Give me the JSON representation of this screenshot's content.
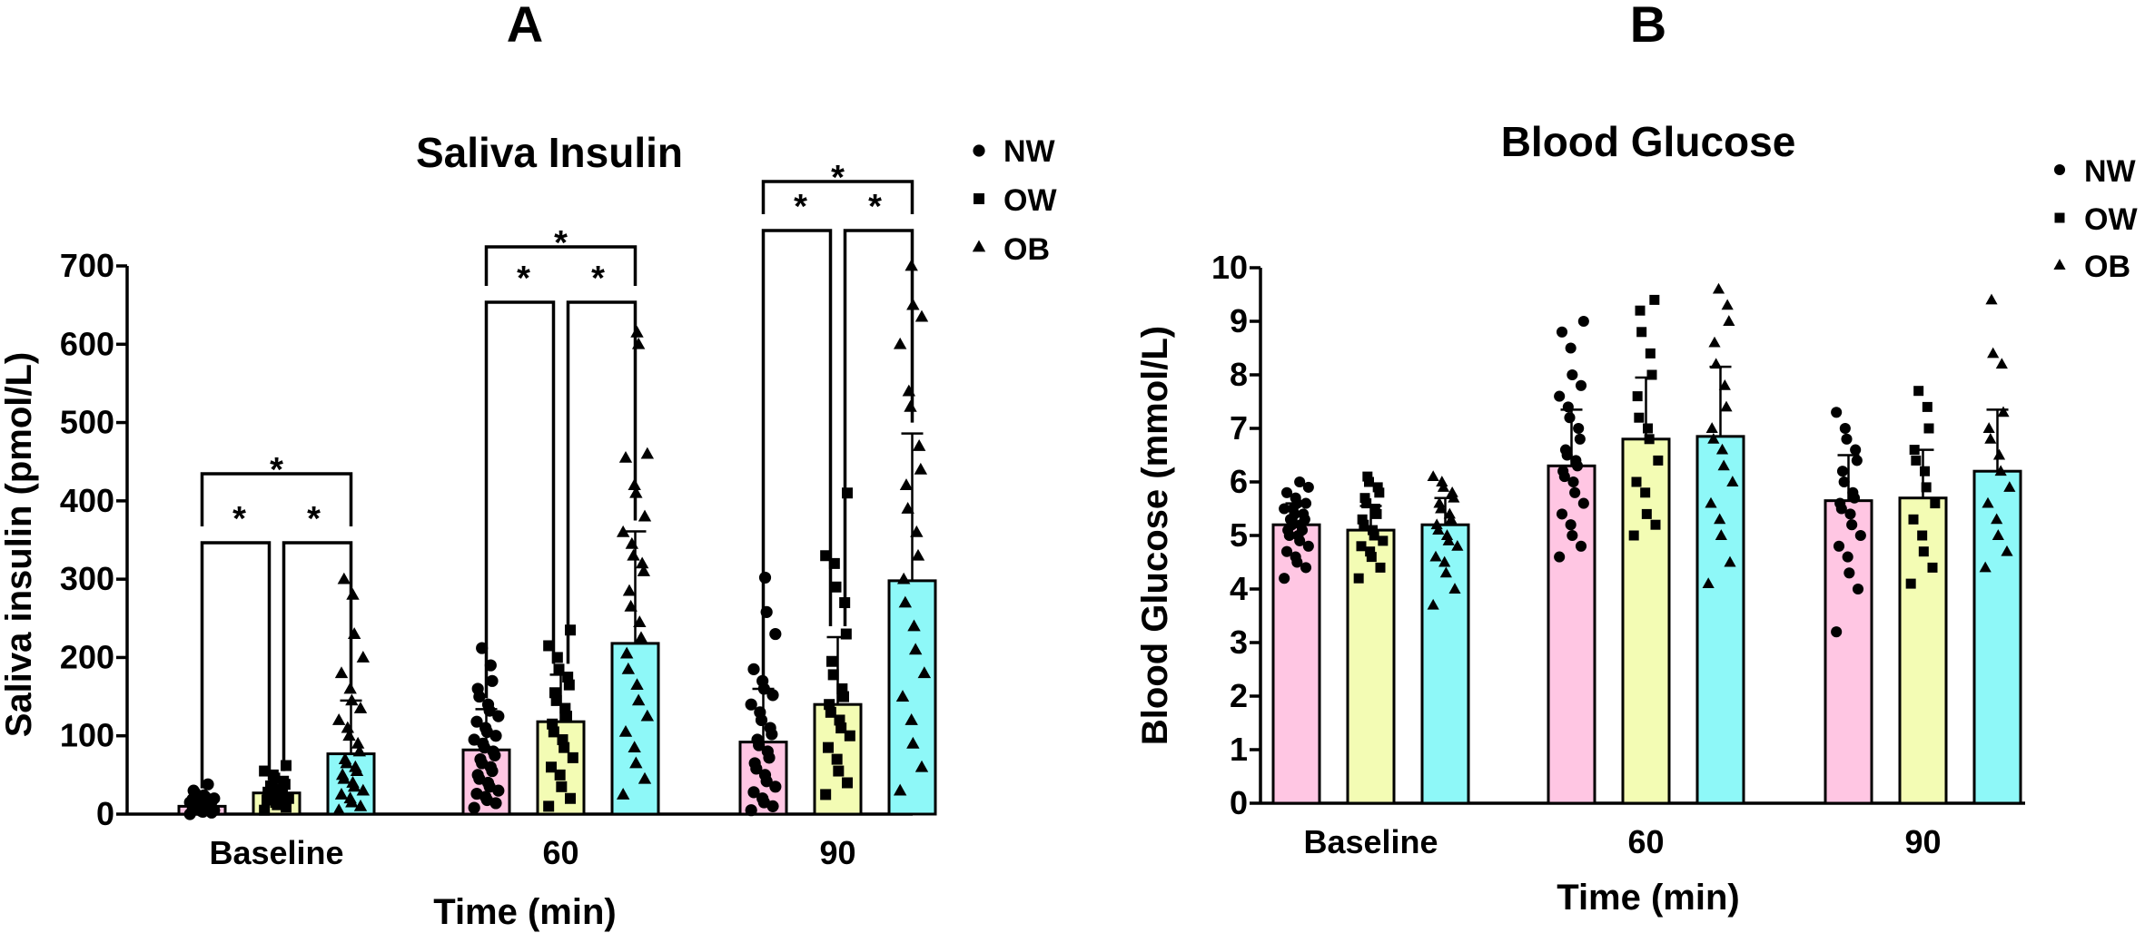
{
  "panels": [
    {
      "letter": "A"
    },
    {
      "letter": "B"
    }
  ],
  "colors": {
    "NW": "#ffc6e3",
    "OW": "#f3fcb4",
    "OB": "#8ef8f8"
  },
  "chart_data": [
    {
      "type": "bar",
      "title": "Saliva Insulin",
      "xlabel": "Time (min)",
      "ylabel": "Saliva insulin (pmol/L)",
      "categories": [
        "Baseline",
        "60",
        "90"
      ],
      "ylim": [
        0,
        700
      ],
      "yticks": [
        0,
        100,
        200,
        300,
        400,
        500,
        600,
        700
      ],
      "legend_position": "top-right",
      "series": [
        {
          "name": "NW",
          "marker": "circle",
          "values": [
            10,
            82,
            92
          ],
          "sd": [
            9,
            52,
            68
          ]
        },
        {
          "name": "OW",
          "marker": "square",
          "values": [
            27,
            118,
            140
          ],
          "sd": [
            14,
            60,
            86
          ]
        },
        {
          "name": "OB",
          "marker": "triangle",
          "values": [
            77,
            218,
            298
          ],
          "sd": [
            68,
            143,
            188
          ]
        }
      ],
      "points": {
        "NW": [
          [
            0,
            2,
            3,
            4,
            5,
            5,
            6,
            7,
            8,
            8,
            9,
            10,
            10,
            11,
            12,
            12,
            13,
            14,
            15,
            16,
            17,
            18,
            19,
            20,
            22,
            24,
            27,
            30,
            38
          ],
          [
            8,
            14,
            18,
            22,
            26,
            30,
            35,
            40,
            45,
            50,
            55,
            60,
            65,
            70,
            75,
            80,
            85,
            90,
            95,
            100,
            105,
            110,
            118,
            125,
            132,
            140,
            150,
            160,
            170,
            190,
            212
          ],
          [
            5,
            10,
            15,
            20,
            28,
            35,
            42,
            50,
            58,
            65,
            72,
            80,
            88,
            95,
            102,
            110,
            120,
            130,
            140,
            152,
            160,
            170,
            185,
            230,
            258,
            302
          ]
        ],
        "OW": [
          [
            5,
            9,
            12,
            15,
            18,
            20,
            22,
            24,
            26,
            28,
            30,
            32,
            34,
            36,
            38,
            42,
            46,
            50,
            55,
            62
          ],
          [
            10,
            20,
            35,
            50,
            60,
            72,
            85,
            95,
            105,
            115,
            125,
            135,
            145,
            155,
            165,
            175,
            185,
            200,
            215,
            235
          ],
          [
            25,
            40,
            55,
            70,
            85,
            100,
            110,
            120,
            130,
            140,
            150,
            160,
            178,
            195,
            230,
            270,
            290,
            320,
            330,
            410
          ]
        ],
        "OB": [
          [
            5,
            10,
            15,
            20,
            25,
            30,
            35,
            40,
            45,
            50,
            55,
            60,
            65,
            70,
            80,
            90,
            100,
            110,
            120,
            135,
            145,
            160,
            180,
            200,
            230,
            280,
            300
          ],
          [
            25,
            45,
            65,
            85,
            105,
            125,
            145,
            165,
            185,
            205,
            225,
            245,
            265,
            285,
            310,
            320,
            330,
            345,
            360,
            380,
            410,
            420,
            455,
            460,
            600,
            615
          ],
          [
            30,
            60,
            90,
            120,
            150,
            180,
            210,
            240,
            270,
            300,
            330,
            360,
            390,
            420,
            440,
            470,
            520,
            540,
            600,
            635,
            650,
            700
          ]
        ]
      },
      "significance": [
        {
          "group": "Baseline",
          "pairs": [
            [
              "NW",
              "OW"
            ],
            [
              "OW",
              "OB"
            ],
            [
              "NW",
              "OB"
            ]
          ],
          "label": "*"
        },
        {
          "group": "60",
          "pairs": [
            [
              "NW",
              "OW"
            ],
            [
              "OW",
              "OB"
            ],
            [
              "NW",
              "OB"
            ]
          ],
          "label": "*"
        },
        {
          "group": "90",
          "pairs": [
            [
              "NW",
              "OW"
            ],
            [
              "OW",
              "OB"
            ],
            [
              "NW",
              "OB"
            ]
          ],
          "label": "*"
        }
      ]
    },
    {
      "type": "bar",
      "title": "Blood Glucose",
      "xlabel": "Time (min)",
      "ylabel": "Blood Glucose (mmol/L)",
      "categories": [
        "Baseline",
        "60",
        "90"
      ],
      "ylim": [
        0,
        10
      ],
      "yticks": [
        0,
        1,
        2,
        3,
        4,
        5,
        6,
        7,
        8,
        9,
        10
      ],
      "legend_position": "top-right",
      "series": [
        {
          "name": "NW",
          "marker": "circle",
          "values": [
            5.2,
            6.3,
            5.65
          ],
          "sd": [
            0.4,
            1.05,
            0.85
          ]
        },
        {
          "name": "OW",
          "marker": "square",
          "values": [
            5.1,
            6.8,
            5.7
          ],
          "sd": [
            0.45,
            1.15,
            0.9
          ]
        },
        {
          "name": "OB",
          "marker": "triangle",
          "values": [
            5.2,
            6.85,
            6.2
          ],
          "sd": [
            0.5,
            1.3,
            1.15
          ]
        }
      ],
      "points": {
        "NW": [
          [
            4.2,
            4.4,
            4.5,
            4.6,
            4.7,
            4.8,
            4.9,
            5.0,
            5.0,
            5.1,
            5.1,
            5.2,
            5.2,
            5.3,
            5.3,
            5.4,
            5.4,
            5.5,
            5.5,
            5.6,
            5.6,
            5.7,
            5.8,
            5.9,
            6.0
          ],
          [
            4.6,
            4.8,
            5.0,
            5.2,
            5.4,
            5.6,
            5.8,
            6.0,
            6.1,
            6.2,
            6.3,
            6.4,
            6.5,
            6.6,
            6.8,
            7.0,
            7.2,
            7.4,
            7.6,
            7.8,
            8.0,
            8.5,
            8.8,
            9.0
          ],
          [
            3.2,
            4.0,
            4.3,
            4.6,
            4.8,
            5.0,
            5.2,
            5.4,
            5.5,
            5.6,
            5.7,
            5.8,
            6.0,
            6.2,
            6.4,
            6.6,
            6.8,
            7.0,
            7.3
          ]
        ],
        "OW": [
          [
            4.2,
            4.4,
            4.6,
            4.7,
            4.8,
            4.9,
            5.0,
            5.1,
            5.2,
            5.3,
            5.4,
            5.5,
            5.6,
            5.7,
            5.8,
            5.9,
            6.0,
            6.1
          ],
          [
            5.0,
            5.2,
            5.4,
            5.8,
            6.0,
            6.4,
            6.8,
            7.0,
            7.2,
            7.6,
            8.0,
            8.4,
            8.8,
            9.2,
            9.4
          ],
          [
            4.1,
            4.4,
            4.7,
            5.0,
            5.3,
            5.6,
            5.9,
            6.2,
            6.4,
            6.6,
            7.0,
            7.4,
            7.7
          ]
        ],
        "OB": [
          [
            3.7,
            4.0,
            4.3,
            4.5,
            4.6,
            4.8,
            4.9,
            5.0,
            5.1,
            5.2,
            5.3,
            5.4,
            5.5,
            5.6,
            5.7,
            5.8,
            5.9,
            6.0,
            6.1
          ],
          [
            4.1,
            4.5,
            5.0,
            5.3,
            5.6,
            6.0,
            6.3,
            6.6,
            6.8,
            7.0,
            7.4,
            7.8,
            8.2,
            8.6,
            9.0,
            9.3,
            9.6
          ],
          [
            4.4,
            4.7,
            5.0,
            5.3,
            5.6,
            5.9,
            6.2,
            6.5,
            6.8,
            7.0,
            7.3,
            8.2,
            8.4,
            9.4
          ]
        ]
      }
    }
  ]
}
